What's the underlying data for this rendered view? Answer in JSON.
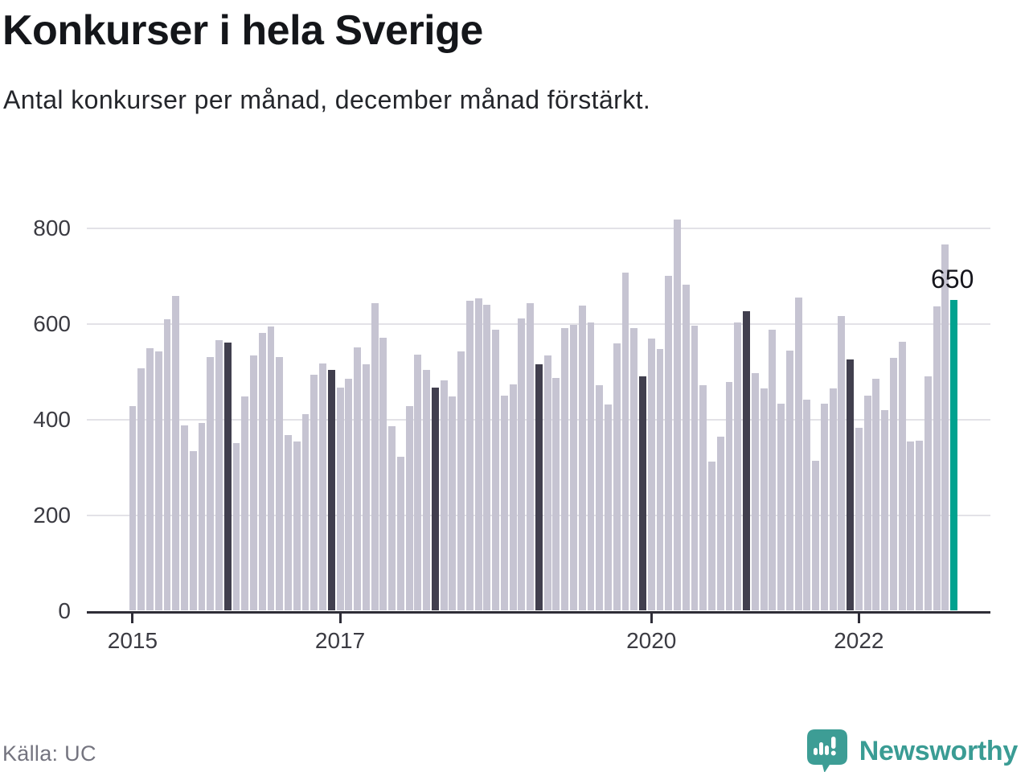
{
  "header": {
    "title": "Konkurser i hela Sverige",
    "subtitle": "Antal konkurser per månad, december månad förstärkt."
  },
  "footer": {
    "source": "Källa: UC",
    "brand_name": "Newsworthy"
  },
  "colors": {
    "bar_normal": "#c6c4d2",
    "bar_december": "#413f4e",
    "bar_latest": "#00a28f",
    "gridline": "#e3e2e7",
    "axis": "#2e2d37",
    "tick_text": "#3b3b42",
    "brand_teal": "#3d9d95"
  },
  "chart_data": {
    "type": "bar",
    "title": "Konkurser i hela Sverige",
    "subtitle": "Antal konkurser per månad, december månad förstärkt.",
    "unit": "konkurser per månad",
    "grid": true,
    "y_ticks": [
      0,
      200,
      400,
      600,
      800
    ],
    "ylim": [
      0,
      850
    ],
    "x_ticks": [
      {
        "label": "2015",
        "month_index": 0
      },
      {
        "label": "2017",
        "month_index": 24
      },
      {
        "label": "2020",
        "month_index": 60
      },
      {
        "label": "2022",
        "month_index": 84
      }
    ],
    "period": {
      "start": "2015-01",
      "end": "2022-12"
    },
    "emphasis": {
      "december_highlighted": true,
      "latest_month": "2022-12",
      "latest_value": 650,
      "latest_label": "650"
    },
    "years": [
      {
        "year": 2015,
        "monthly": [
          428,
          508,
          549,
          543,
          610,
          658,
          388,
          334,
          392,
          530,
          566,
          561
        ]
      },
      {
        "year": 2016,
        "monthly": [
          351,
          449,
          534,
          582,
          594,
          531,
          367,
          354,
          412,
          494,
          517,
          504
        ]
      },
      {
        "year": 2017,
        "monthly": [
          467,
          486,
          551,
          516,
          643,
          572,
          386,
          323,
          428,
          535,
          504,
          467
        ]
      },
      {
        "year": 2018,
        "monthly": [
          482,
          449,
          543,
          649,
          654,
          640,
          588,
          450,
          473,
          611,
          644,
          515
        ]
      },
      {
        "year": 2019,
        "monthly": [
          534,
          487,
          592,
          598,
          639,
          603,
          472,
          431,
          559,
          708,
          592,
          490
        ]
      },
      {
        "year": 2020,
        "monthly": [
          570,
          548,
          701,
          818,
          683,
          596,
          472,
          312,
          364,
          478,
          603,
          627
        ]
      },
      {
        "year": 2021,
        "monthly": [
          497,
          466,
          588,
          433,
          545,
          656,
          442,
          313,
          433,
          465,
          616,
          525
        ]
      },
      {
        "year": 2022,
        "monthly": [
          382,
          450,
          486,
          419,
          529,
          562,
          354,
          356,
          491,
          636,
          766,
          650
        ]
      }
    ]
  }
}
